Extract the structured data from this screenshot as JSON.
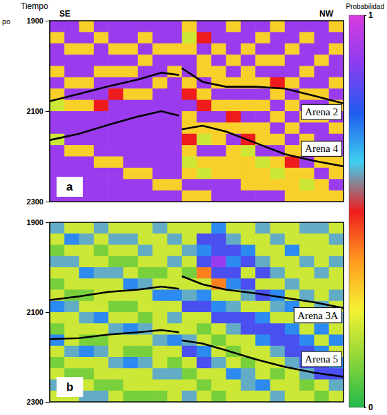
{
  "figure": {
    "y_title": "Tiempo",
    "y_title_fragment": "po",
    "colorbar": {
      "title": "Probabilidad",
      "range": [
        0,
        1
      ],
      "ticks": [
        0,
        1
      ],
      "colors": [
        "#22b94a",
        "#8fd63a",
        "#f5f232",
        "#ff9a1f",
        "#ee1c1c",
        "#3fd0f0",
        "#1f5cf0",
        "#8a3cf0",
        "#d83ce0"
      ]
    }
  },
  "chart_data": [
    {
      "type": "heatmap",
      "panel": "a",
      "x_end_labels": [
        "SE",
        "NW"
      ],
      "tick_labels": "y",
      "xlim": [
        0,
        1
      ],
      "ylim": [
        1900,
        2300
      ],
      "yticks": [
        1900,
        2100,
        2300
      ],
      "z": [
        [
          0.9,
          0.9,
          0.3,
          0.9,
          0.9,
          0.9,
          0.9,
          0.9,
          0.9,
          0.3,
          0.9,
          0.9,
          0.3,
          0.9,
          0.9,
          0.3,
          0.9,
          0.9,
          0.9,
          0.3
        ],
        [
          0.3,
          0.9,
          0.9,
          0.3,
          0.9,
          0.9,
          0.3,
          0.9,
          0.9,
          0.2,
          0.5,
          0.9,
          0.9,
          0.9,
          0.3,
          0.9,
          0.9,
          0.3,
          0.9,
          0.9
        ],
        [
          0.9,
          0.3,
          0.3,
          0.9,
          0.3,
          0.3,
          0.9,
          0.3,
          0.3,
          0.3,
          0.9,
          0.3,
          0.9,
          0.3,
          0.9,
          0.9,
          0.3,
          0.9,
          0.9,
          0.3
        ],
        [
          0.9,
          0.9,
          0.9,
          0.9,
          0.9,
          0.9,
          0.3,
          0.9,
          0.9,
          0.9,
          0.3,
          0.9,
          0.3,
          0.9,
          0.3,
          0.3,
          0.9,
          0.9,
          0.3,
          0.9
        ],
        [
          0.3,
          0.9,
          0.9,
          0.3,
          0.3,
          0.3,
          0.9,
          0.9,
          0.3,
          0.9,
          0.3,
          0.3,
          0.9,
          0.3,
          0.9,
          0.9,
          0.9,
          0.3,
          0.9,
          0.9
        ],
        [
          0.9,
          0.3,
          0.3,
          0.9,
          0.9,
          0.9,
          0.9,
          0.3,
          0.9,
          0.3,
          0.9,
          0.3,
          0.3,
          0.3,
          0.3,
          0.5,
          0.3,
          0.9,
          0.9,
          0.3
        ],
        [
          0.3,
          0.9,
          0.9,
          0.9,
          0.5,
          0.3,
          0.3,
          0.9,
          0.9,
          0.5,
          0.3,
          0.9,
          0.9,
          0.9,
          0.9,
          0.3,
          0.9,
          0.3,
          0.3,
          0.9
        ],
        [
          0.2,
          0.3,
          0.3,
          0.5,
          0.9,
          0.9,
          0.9,
          0.9,
          0.9,
          0.9,
          0.5,
          0.3,
          0.3,
          0.3,
          0.3,
          0.9,
          0.3,
          0.9,
          0.9,
          0.3
        ],
        [
          0.9,
          0.9,
          0.9,
          0.9,
          0.9,
          0.9,
          0.9,
          0.9,
          0.9,
          0.3,
          0.9,
          0.9,
          0.5,
          0.9,
          0.9,
          0.3,
          0.9,
          0.3,
          0.3,
          0.9
        ],
        [
          0.9,
          0.9,
          0.9,
          0.9,
          0.9,
          0.9,
          0.9,
          0.9,
          0.9,
          0.3,
          0.3,
          0.3,
          0.3,
          0.3,
          0.3,
          0.9,
          0.3,
          0.9,
          0.9,
          0.3
        ],
        [
          0.2,
          0.9,
          0.9,
          0.9,
          0.9,
          0.9,
          0.9,
          0.9,
          0.9,
          0.5,
          0.2,
          0.3,
          0.9,
          0.5,
          0.3,
          0.3,
          0.9,
          0.3,
          0.9,
          0.9
        ],
        [
          0.9,
          0.3,
          0.3,
          0.9,
          0.9,
          0.9,
          0.9,
          0.9,
          0.9,
          0.3,
          0.9,
          0.9,
          0.3,
          0.2,
          0.9,
          0.9,
          0.3,
          0.3,
          0.3,
          0.9
        ],
        [
          0.9,
          0.9,
          0.9,
          0.3,
          0.3,
          0.9,
          0.9,
          0.9,
          0.9,
          0.2,
          0.3,
          0.3,
          0.3,
          0.3,
          0.2,
          0.3,
          0.5,
          0.9,
          0.3,
          0.3
        ],
        [
          0.9,
          0.9,
          0.9,
          0.9,
          0.9,
          0.3,
          0.3,
          0.9,
          0.9,
          0.3,
          0.2,
          0.3,
          0.3,
          0.3,
          0.3,
          0.2,
          0.3,
          0.3,
          0.9,
          0.3
        ],
        [
          0.9,
          0.9,
          0.9,
          0.9,
          0.9,
          0.9,
          0.9,
          0.3,
          0.3,
          0.9,
          0.9,
          0.9,
          0.9,
          0.3,
          0.3,
          0.3,
          0.3,
          0.2,
          0.3,
          0.9
        ],
        [
          0.9,
          0.9,
          0.9,
          0.9,
          0.9,
          0.9,
          0.9,
          0.9,
          0.9,
          0.3,
          0.3,
          0.9,
          0.9,
          0.9,
          0.9,
          0.9,
          0.3,
          0.3,
          0.3,
          0.3
        ]
      ],
      "series": [
        {
          "name": "Arena 2",
          "color": "#000000",
          "line_style": "solid",
          "x": [
            0,
            0.1,
            0.2,
            0.3,
            0.38,
            0.44,
            0.445,
            0.45,
            0.52,
            0.6,
            0.7,
            0.8,
            0.9,
            1
          ],
          "values": [
            2078,
            2062,
            2045,
            2030,
            2015,
            2020,
            null,
            2005,
            2035,
            2046,
            2046,
            2050,
            2066,
            2083
          ]
        },
        {
          "name": "Arena 4",
          "color": "#000000",
          "line_style": "solid",
          "x": [
            0,
            0.1,
            0.2,
            0.3,
            0.38,
            0.44,
            0.445,
            0.45,
            0.52,
            0.6,
            0.7,
            0.8,
            0.9,
            1
          ],
          "values": [
            2164,
            2150,
            2130,
            2112,
            2100,
            2110,
            null,
            2140,
            2132,
            2145,
            2170,
            2195,
            2210,
            2222
          ]
        }
      ]
    },
    {
      "type": "heatmap",
      "panel": "b",
      "tick_labels": "y",
      "xlim": [
        0,
        1
      ],
      "ylim": [
        1900,
        2300
      ],
      "yticks": [
        1900,
        2100,
        2300
      ],
      "z": [
        [
          0.6,
          0.2,
          0.2,
          0.6,
          0.2,
          0.2,
          0.2,
          0.6,
          0.2,
          0.2,
          0.2,
          0.7,
          0.2,
          0.2,
          0.6,
          0.2,
          0.2,
          0.6,
          0.6,
          0.2
        ],
        [
          0.2,
          0.7,
          0.6,
          0.2,
          0.6,
          0.6,
          0.2,
          0.2,
          0.6,
          0.2,
          0.8,
          0.8,
          0.6,
          0.2,
          0.2,
          0.6,
          0.2,
          0.2,
          0.2,
          0.6
        ],
        [
          0.1,
          0.2,
          0.2,
          0.1,
          0.2,
          0.2,
          0.6,
          0.2,
          0.2,
          0.6,
          0.7,
          0.8,
          0.8,
          0.7,
          0.2,
          0.2,
          0.7,
          0.2,
          0.2,
          0.2
        ],
        [
          0.6,
          0.6,
          0.2,
          0.2,
          0.1,
          0.1,
          0.2,
          0.2,
          0.6,
          0.2,
          0.8,
          0.9,
          0.7,
          0.8,
          0.6,
          0.2,
          0.2,
          0.6,
          0.2,
          0.6
        ],
        [
          0.2,
          0.2,
          0.7,
          0.6,
          0.6,
          0.2,
          0.1,
          0.1,
          0.2,
          0.1,
          0.4,
          0.8,
          0.8,
          0.2,
          0.8,
          0.6,
          0.2,
          0.2,
          0.6,
          0.2
        ],
        [
          0.1,
          0.2,
          0.2,
          0.2,
          0.2,
          0.7,
          0.6,
          0.2,
          0.2,
          0.2,
          0.2,
          0.4,
          0.7,
          0.8,
          0.2,
          0.2,
          0.6,
          0.2,
          0.2,
          0.2
        ],
        [
          0.2,
          0.1,
          0.1,
          0.2,
          0.2,
          0.2,
          0.2,
          0.7,
          0.7,
          0.6,
          0.7,
          0.2,
          0.2,
          0.6,
          0.8,
          0.7,
          0.2,
          0.6,
          0.2,
          0.6
        ],
        [
          0.7,
          0.6,
          0.2,
          0.2,
          0.1,
          0.1,
          0.2,
          0.2,
          0.2,
          0.8,
          0.8,
          0.7,
          0.6,
          0.2,
          0.2,
          0.6,
          0.7,
          0.2,
          0.6,
          0.2
        ],
        [
          0.2,
          0.2,
          0.6,
          0.7,
          0.2,
          0.2,
          0.1,
          0.2,
          0.6,
          0.2,
          0.2,
          0.8,
          0.8,
          0.8,
          0.7,
          0.2,
          0.2,
          0.7,
          0.2,
          0.6
        ],
        [
          0.1,
          0.2,
          0.2,
          0.2,
          0.6,
          0.7,
          0.6,
          0.2,
          0.2,
          0.2,
          0.1,
          0.2,
          0.6,
          0.8,
          0.8,
          0.8,
          0.7,
          0.2,
          0.7,
          0.2
        ],
        [
          0.7,
          0.2,
          0.1,
          0.1,
          0.2,
          0.2,
          0.2,
          0.6,
          0.7,
          0.6,
          0.2,
          0.1,
          0.2,
          0.2,
          0.7,
          0.8,
          0.8,
          0.7,
          0.2,
          0.7
        ],
        [
          0.2,
          0.6,
          0.7,
          0.6,
          0.2,
          0.1,
          0.1,
          0.2,
          0.2,
          0.8,
          0.7,
          0.2,
          0.1,
          0.2,
          0.2,
          0.6,
          0.8,
          0.8,
          0.7,
          0.2
        ],
        [
          0.1,
          0.2,
          0.2,
          0.2,
          0.6,
          0.7,
          0.6,
          0.2,
          0.1,
          0.2,
          0.8,
          0.6,
          0.2,
          0.1,
          0.2,
          0.2,
          0.6,
          0.8,
          0.8,
          0.7
        ],
        [
          0.2,
          0.1,
          0.1,
          0.2,
          0.2,
          0.2,
          0.2,
          0.6,
          0.6,
          0.1,
          0.2,
          0.2,
          0.7,
          0.6,
          0.2,
          0.1,
          0.2,
          0.6,
          0.8,
          0.8
        ],
        [
          0.6,
          0.6,
          0.2,
          0.1,
          0.1,
          0.2,
          0.2,
          0.2,
          0.2,
          0.2,
          0.1,
          0.2,
          0.2,
          0.6,
          0.7,
          0.2,
          0.2,
          0.1,
          0.2,
          0.6
        ],
        [
          0.2,
          0.2,
          0.6,
          0.6,
          0.2,
          0.1,
          0.1,
          0.1,
          0.2,
          0.6,
          0.2,
          0.1,
          0.2,
          0.2,
          0.2,
          0.6,
          0.2,
          0.2,
          0.1,
          0.2
        ]
      ],
      "series": [
        {
          "name": "Arena 3A",
          "color": "#000000",
          "line_style": "solid",
          "x": [
            0,
            0.1,
            0.2,
            0.3,
            0.38,
            0.44,
            0.445,
            0.45,
            0.52,
            0.6,
            0.7,
            0.8,
            0.9,
            1
          ],
          "values": [
            2073,
            2065,
            2055,
            2050,
            2043,
            2048,
            null,
            2020,
            2038,
            2050,
            2058,
            2068,
            2078,
            2091
          ]
        },
        {
          "name": "Arena 5",
          "color": "#000000",
          "line_style": "solid",
          "x": [
            0,
            0.1,
            0.2,
            0.3,
            0.38,
            0.44,
            0.445,
            0.45,
            0.52,
            0.6,
            0.7,
            0.8,
            0.9,
            1
          ],
          "values": [
            2160,
            2158,
            2150,
            2145,
            2140,
            2145,
            null,
            2163,
            2170,
            2185,
            2205,
            2222,
            2235,
            2244
          ]
        }
      ]
    }
  ]
}
